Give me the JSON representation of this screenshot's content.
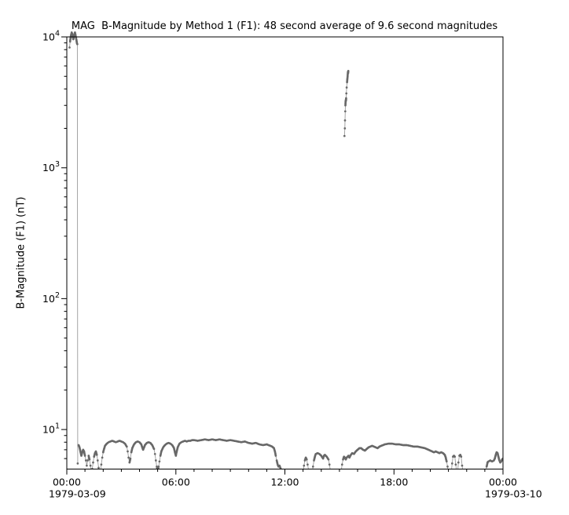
{
  "chart_data": {
    "type": "scatter",
    "title": "MAG  B-Magnitude by Method 1 (F1): 48 second average of 9.6 second magnitudes",
    "xlabel": "",
    "ylabel": "B-Magnitude (F1) (nT)",
    "y_axis": {
      "scale": "log",
      "ylim": [
        5,
        10000
      ],
      "major_tick_exponents": [
        1,
        2,
        3,
        4
      ],
      "major_tick_labels": [
        "10^1",
        "10^2",
        "10^3",
        "10^4"
      ]
    },
    "x_axis": {
      "unit": "hours since 1979-03-09 00:00",
      "xlim_hours": [
        0,
        24
      ],
      "minor_tick_interval_hours": 1,
      "major_ticks": [
        {
          "hour": 0,
          "label": "00:00"
        },
        {
          "hour": 6,
          "label": "06:00"
        },
        {
          "hour": 12,
          "label": "12:00"
        },
        {
          "hour": 18,
          "label": "18:00"
        },
        {
          "hour": 24,
          "label": "00:00"
        }
      ],
      "date_labels": [
        {
          "hour": 0,
          "label": "1979-03-09"
        },
        {
          "hour": 24,
          "label": "1979-03-10"
        }
      ]
    },
    "legend": "none",
    "grid": false,
    "series": [
      {
        "name": "B-Magnitude (F1) 48s average",
        "marker_color": "#686868",
        "line_color": "#9b9b9b",
        "segments": [
          [
            [
              0.15,
              8300
            ],
            [
              0.18,
              9200
            ],
            [
              0.21,
              9900
            ],
            [
              0.24,
              10400
            ],
            [
              0.27,
              10800
            ],
            [
              0.3,
              10500
            ],
            [
              0.33,
              10000
            ],
            [
              0.36,
              9600
            ],
            [
              0.39,
              10100
            ],
            [
              0.42,
              10500
            ],
            [
              0.45,
              10800
            ],
            [
              0.48,
              10300
            ],
            [
              0.51,
              9800
            ],
            [
              0.54,
              9300
            ],
            [
              0.56,
              8900
            ],
            [
              0.58,
              8800
            ],
            [
              0.6,
              5.5
            ]
          ],
          [
            [
              0.65,
              7.6
            ],
            [
              0.7,
              7.3
            ],
            [
              0.75,
              6.8
            ],
            [
              0.8,
              6.3
            ],
            [
              0.85,
              6.7
            ],
            [
              0.9,
              7.0
            ],
            [
              0.95,
              6.8
            ],
            [
              1.0,
              6.3
            ],
            [
              1.05,
              5.8
            ],
            [
              1.1,
              5.3
            ],
            [
              1.15,
              5.8
            ],
            [
              1.2,
              6.3
            ],
            [
              1.25,
              5.9
            ],
            [
              1.3,
              5.3
            ],
            [
              1.35,
              4.7
            ],
            [
              1.4,
              5.0
            ],
            [
              1.45,
              5.6
            ],
            [
              1.5,
              6.2
            ],
            [
              1.55,
              6.6
            ],
            [
              1.6,
              6.8
            ],
            [
              1.65,
              6.4
            ],
            [
              1.7,
              5.8
            ],
            [
              1.75,
              5.1
            ],
            [
              1.8,
              4.6
            ],
            [
              1.85,
              4.8
            ],
            [
              1.9,
              5.4
            ],
            [
              1.95,
              6.1
            ],
            [
              2.0,
              6.7
            ],
            [
              2.05,
              7.1
            ],
            [
              2.1,
              7.5
            ],
            [
              2.2,
              7.8
            ],
            [
              2.3,
              8.0
            ],
            [
              2.4,
              8.1
            ],
            [
              2.5,
              8.2
            ],
            [
              2.6,
              8.1
            ],
            [
              2.7,
              8.0
            ],
            [
              2.8,
              8.1
            ],
            [
              2.9,
              8.2
            ],
            [
              3.0,
              8.1
            ],
            [
              3.1,
              8.0
            ],
            [
              3.2,
              7.8
            ],
            [
              3.3,
              7.4
            ],
            [
              3.35,
              6.8
            ],
            [
              3.4,
              6.1
            ],
            [
              3.45,
              5.6
            ],
            [
              3.5,
              6.0
            ],
            [
              3.55,
              6.7
            ],
            [
              3.6,
              7.2
            ],
            [
              3.7,
              7.7
            ],
            [
              3.8,
              8.0
            ],
            [
              3.9,
              8.1
            ],
            [
              4.0,
              8.0
            ],
            [
              4.1,
              7.7
            ],
            [
              4.15,
              7.3
            ],
            [
              4.2,
              7.0
            ],
            [
              4.25,
              7.3
            ],
            [
              4.3,
              7.6
            ],
            [
              4.4,
              7.9
            ],
            [
              4.5,
              8.0
            ],
            [
              4.6,
              7.9
            ],
            [
              4.7,
              7.6
            ],
            [
              4.8,
              7.1
            ],
            [
              4.85,
              6.5
            ],
            [
              4.9,
              5.8
            ],
            [
              4.95,
              5.2
            ],
            [
              5.0,
              4.8
            ],
            [
              5.05,
              5.2
            ],
            [
              5.1,
              5.7
            ],
            [
              5.15,
              6.3
            ],
            [
              5.2,
              6.8
            ],
            [
              5.3,
              7.3
            ],
            [
              5.4,
              7.6
            ],
            [
              5.5,
              7.8
            ],
            [
              5.6,
              7.9
            ],
            [
              5.7,
              7.8
            ],
            [
              5.8,
              7.6
            ],
            [
              5.9,
              7.2
            ],
            [
              5.95,
              6.7
            ],
            [
              6.0,
              6.3
            ],
            [
              6.05,
              6.8
            ],
            [
              6.1,
              7.3
            ],
            [
              6.2,
              7.8
            ],
            [
              6.3,
              8.0
            ],
            [
              6.4,
              8.1
            ],
            [
              6.5,
              8.2
            ],
            [
              6.6,
              8.1
            ],
            [
              6.7,
              8.2
            ],
            [
              6.8,
              8.2
            ],
            [
              6.9,
              8.3
            ],
            [
              7.0,
              8.3
            ],
            [
              7.2,
              8.2
            ],
            [
              7.4,
              8.3
            ],
            [
              7.6,
              8.4
            ],
            [
              7.8,
              8.3
            ],
            [
              8.0,
              8.4
            ],
            [
              8.2,
              8.3
            ],
            [
              8.4,
              8.4
            ],
            [
              8.6,
              8.3
            ],
            [
              8.8,
              8.2
            ],
            [
              9.0,
              8.3
            ],
            [
              9.2,
              8.2
            ],
            [
              9.4,
              8.1
            ],
            [
              9.6,
              8.0
            ],
            [
              9.8,
              8.1
            ],
            [
              10.0,
              7.9
            ],
            [
              10.2,
              7.8
            ],
            [
              10.4,
              7.9
            ],
            [
              10.6,
              7.7
            ],
            [
              10.8,
              7.6
            ],
            [
              11.0,
              7.7
            ],
            [
              11.1,
              7.6
            ],
            [
              11.2,
              7.5
            ],
            [
              11.3,
              7.4
            ],
            [
              11.4,
              7.2
            ],
            [
              11.45,
              6.8
            ],
            [
              11.5,
              6.3
            ],
            [
              11.55,
              5.8
            ],
            [
              11.6,
              5.4
            ],
            [
              11.65,
              5.2
            ],
            [
              11.7,
              5.3
            ],
            [
              11.75,
              5.1
            ],
            [
              11.8,
              4.9
            ],
            [
              11.85,
              4.6
            ]
          ],
          [
            [
              13.0,
              4.7
            ],
            [
              13.05,
              5.3
            ],
            [
              13.1,
              5.8
            ],
            [
              13.15,
              6.1
            ],
            [
              13.2,
              5.9
            ],
            [
              13.25,
              5.4
            ],
            [
              13.3,
              4.9
            ],
            [
              13.35,
              4.5
            ]
          ],
          [
            [
              13.5,
              4.6
            ],
            [
              13.55,
              5.2
            ],
            [
              13.6,
              5.8
            ],
            [
              13.65,
              6.2
            ],
            [
              13.7,
              6.5
            ],
            [
              13.8,
              6.6
            ],
            [
              13.9,
              6.5
            ],
            [
              14.0,
              6.3
            ],
            [
              14.1,
              6.0
            ],
            [
              14.15,
              6.3
            ],
            [
              14.2,
              6.4
            ],
            [
              14.3,
              6.2
            ],
            [
              14.4,
              5.9
            ],
            [
              14.45,
              5.4
            ],
            [
              14.5,
              4.9
            ],
            [
              14.55,
              4.5
            ]
          ],
          [
            [
              15.1,
              4.8
            ],
            [
              15.15,
              5.4
            ],
            [
              15.2,
              5.9
            ],
            [
              15.25,
              6.2
            ],
            [
              15.3,
              6.1
            ],
            [
              15.35,
              5.9
            ],
            [
              15.4,
              6.1
            ],
            [
              15.45,
              6.2
            ],
            [
              15.5,
              6.3
            ],
            [
              15.55,
              6.1
            ],
            [
              15.6,
              6.3
            ],
            [
              15.7,
              6.6
            ],
            [
              15.8,
              6.5
            ],
            [
              15.9,
              6.8
            ],
            [
              16.0,
              7.0
            ],
            [
              16.1,
              7.2
            ],
            [
              16.2,
              7.2
            ],
            [
              16.3,
              7.0
            ],
            [
              16.4,
              6.9
            ],
            [
              16.5,
              7.1
            ],
            [
              16.6,
              7.3
            ],
            [
              16.7,
              7.4
            ],
            [
              16.8,
              7.5
            ],
            [
              16.9,
              7.4
            ],
            [
              17.0,
              7.3
            ],
            [
              17.1,
              7.2
            ],
            [
              17.2,
              7.4
            ],
            [
              17.3,
              7.5
            ],
            [
              17.4,
              7.6
            ],
            [
              17.5,
              7.7
            ],
            [
              17.7,
              7.8
            ],
            [
              17.9,
              7.8
            ],
            [
              18.1,
              7.7
            ],
            [
              18.3,
              7.7
            ],
            [
              18.5,
              7.6
            ],
            [
              18.7,
              7.6
            ],
            [
              18.9,
              7.5
            ],
            [
              19.1,
              7.4
            ],
            [
              19.3,
              7.4
            ],
            [
              19.5,
              7.3
            ],
            [
              19.7,
              7.2
            ],
            [
              19.9,
              7.0
            ],
            [
              20.0,
              6.9
            ],
            [
              20.1,
              6.8
            ],
            [
              20.2,
              6.7
            ],
            [
              20.3,
              6.8
            ],
            [
              20.4,
              6.7
            ],
            [
              20.5,
              6.6
            ],
            [
              20.6,
              6.7
            ],
            [
              20.7,
              6.6
            ],
            [
              20.8,
              6.4
            ],
            [
              20.85,
              6.1
            ],
            [
              20.9,
              5.7
            ],
            [
              20.95,
              5.2
            ],
            [
              21.0,
              4.6
            ]
          ],
          [
            [
              21.15,
              4.6
            ],
            [
              21.2,
              5.5
            ],
            [
              21.25,
              6.2
            ],
            [
              21.3,
              6.3
            ],
            [
              21.35,
              6.2
            ],
            [
              21.4,
              5.4
            ],
            [
              21.45,
              4.6
            ]
          ],
          [
            [
              21.5,
              4.6
            ],
            [
              21.55,
              5.6
            ],
            [
              21.6,
              6.3
            ],
            [
              21.65,
              6.4
            ],
            [
              21.7,
              6.2
            ],
            [
              21.75,
              5.3
            ],
            [
              21.8,
              4.6
            ]
          ],
          [
            [
              23.05,
              4.7
            ],
            [
              23.1,
              5.2
            ],
            [
              23.15,
              5.6
            ],
            [
              23.2,
              5.7
            ],
            [
              23.3,
              5.8
            ],
            [
              23.4,
              5.7
            ],
            [
              23.5,
              5.8
            ],
            [
              23.55,
              6.0
            ],
            [
              23.6,
              6.4
            ],
            [
              23.65,
              6.7
            ],
            [
              23.7,
              6.6
            ],
            [
              23.75,
              6.2
            ],
            [
              23.8,
              5.8
            ],
            [
              23.85,
              5.6
            ],
            [
              23.9,
              5.7
            ],
            [
              23.95,
              5.9
            ],
            [
              24.0,
              6.0
            ]
          ],
          [
            [
              15.28,
              1750
            ],
            [
              15.3,
              2000
            ],
            [
              15.31,
              2300
            ],
            [
              15.32,
              2700
            ],
            [
              15.33,
              3000
            ],
            [
              15.34,
              3200
            ],
            [
              15.35,
              3300
            ],
            [
              15.36,
              3250
            ],
            [
              15.37,
              3400
            ],
            [
              15.38,
              3700
            ],
            [
              15.4,
              4100
            ],
            [
              15.42,
              4500
            ],
            [
              15.44,
              4800
            ],
            [
              15.45,
              5000
            ],
            [
              15.46,
              5200
            ],
            [
              15.47,
              5400
            ],
            [
              15.48,
              5300
            ],
            [
              15.49,
              5500
            ]
          ]
        ]
      }
    ],
    "colors": {
      "axis": "#000000",
      "marker": "#686868",
      "connector_line": "#9b9b9b",
      "background": "#ffffff"
    }
  }
}
